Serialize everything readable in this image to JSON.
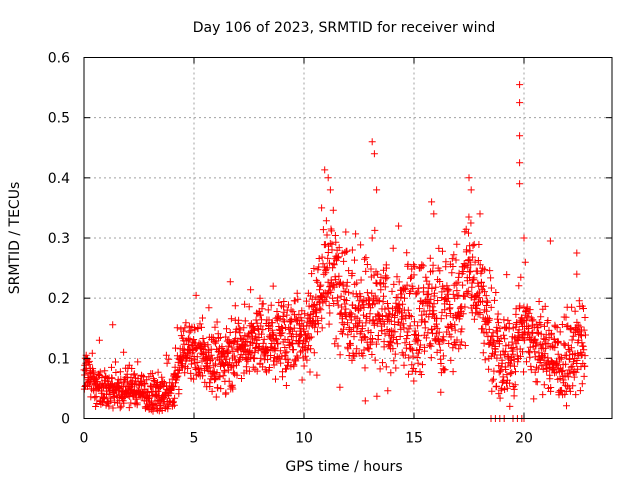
{
  "chart_data": {
    "type": "scatter",
    "title": "Day 106 of 2023, SRMTID for receiver wind",
    "xlabel": "GPS time / hours",
    "ylabel": "SRMTID / TECUs",
    "xlim": [
      0,
      24
    ],
    "ylim": [
      0,
      0.6
    ],
    "x_ticks": [
      0,
      5,
      10,
      15,
      20
    ],
    "x_tick_labels": [
      "0",
      "5",
      "10",
      "15",
      "20"
    ],
    "y_ticks": [
      0,
      0.1,
      0.2,
      0.3,
      0.4,
      0.5,
      0.6
    ],
    "y_tick_labels": [
      "0",
      "0.1",
      "0.2",
      "0.3",
      "0.4",
      "0.5",
      "0.6"
    ],
    "grid": true,
    "marker": "+",
    "color": "#ff0000",
    "x_range_of_data": [
      0,
      22.8
    ],
    "trend": [
      [
        0.0,
        0.08
      ],
      [
        0.5,
        0.06
      ],
      [
        1.0,
        0.05
      ],
      [
        1.5,
        0.05
      ],
      [
        2.0,
        0.05
      ],
      [
        2.5,
        0.05
      ],
      [
        3.0,
        0.04
      ],
      [
        3.5,
        0.035
      ],
      [
        4.0,
        0.04
      ],
      [
        4.5,
        0.11
      ],
      [
        5.0,
        0.12
      ],
      [
        5.5,
        0.1
      ],
      [
        6.0,
        0.09
      ],
      [
        6.5,
        0.1
      ],
      [
        7.0,
        0.12
      ],
      [
        7.5,
        0.12
      ],
      [
        8.0,
        0.13
      ],
      [
        8.5,
        0.13
      ],
      [
        9.0,
        0.13
      ],
      [
        9.5,
        0.14
      ],
      [
        10.0,
        0.14
      ],
      [
        10.5,
        0.18
      ],
      [
        11.0,
        0.25
      ],
      [
        11.5,
        0.22
      ],
      [
        12.0,
        0.2
      ],
      [
        12.5,
        0.17
      ],
      [
        13.0,
        0.17
      ],
      [
        13.5,
        0.16
      ],
      [
        14.0,
        0.16
      ],
      [
        14.5,
        0.17
      ],
      [
        15.0,
        0.17
      ],
      [
        15.5,
        0.18
      ],
      [
        16.0,
        0.17
      ],
      [
        16.5,
        0.17
      ],
      [
        17.0,
        0.18
      ],
      [
        17.5,
        0.25
      ],
      [
        18.0,
        0.22
      ],
      [
        18.5,
        0.12
      ],
      [
        19.0,
        0.1
      ],
      [
        19.5,
        0.1
      ],
      [
        20.0,
        0.17
      ],
      [
        20.5,
        0.12
      ],
      [
        21.0,
        0.11
      ],
      [
        21.5,
        0.1
      ],
      [
        22.0,
        0.09
      ],
      [
        22.5,
        0.12
      ],
      [
        22.8,
        0.11
      ]
    ],
    "spread": [
      [
        0.0,
        0.02
      ],
      [
        4.0,
        0.02
      ],
      [
        5.0,
        0.03
      ],
      [
        10.0,
        0.04
      ],
      [
        11.0,
        0.07
      ],
      [
        13.0,
        0.06
      ],
      [
        15.0,
        0.06
      ],
      [
        17.0,
        0.06
      ],
      [
        18.5,
        0.05
      ],
      [
        19.5,
        0.05
      ],
      [
        22.8,
        0.04
      ]
    ],
    "notable_points": [
      [
        0.1,
        0.105
      ],
      [
        0.7,
        0.13
      ],
      [
        1.8,
        0.11
      ],
      [
        5.7,
        0.135
      ],
      [
        7.3,
        0.19
      ],
      [
        8.0,
        0.2
      ],
      [
        8.6,
        0.22
      ],
      [
        10.8,
        0.35
      ],
      [
        11.1,
        0.4
      ],
      [
        11.2,
        0.38
      ],
      [
        11.9,
        0.31
      ],
      [
        12.2,
        0.28
      ],
      [
        13.1,
        0.46
      ],
      [
        13.2,
        0.44
      ],
      [
        13.3,
        0.38
      ],
      [
        13.1,
        0.3
      ],
      [
        14.3,
        0.32
      ],
      [
        15.8,
        0.36
      ],
      [
        15.9,
        0.34
      ],
      [
        17.5,
        0.4
      ],
      [
        17.6,
        0.38
      ],
      [
        18.0,
        0.34
      ],
      [
        19.8,
        0.555
      ],
      [
        19.8,
        0.525
      ],
      [
        19.8,
        0.47
      ],
      [
        19.8,
        0.425
      ],
      [
        19.8,
        0.39
      ],
      [
        20.0,
        0.3
      ],
      [
        21.2,
        0.295
      ],
      [
        22.4,
        0.275
      ],
      [
        22.4,
        0.24
      ],
      [
        18.5,
        0.0
      ],
      [
        18.7,
        0.0
      ],
      [
        18.9,
        0.0
      ],
      [
        19.1,
        0.0
      ],
      [
        19.5,
        0.0
      ],
      [
        19.7,
        0.0
      ],
      [
        19.9,
        0.0
      ],
      [
        20.0,
        0.0
      ]
    ],
    "generated_point_count": 2100,
    "random_seed": 106
  }
}
